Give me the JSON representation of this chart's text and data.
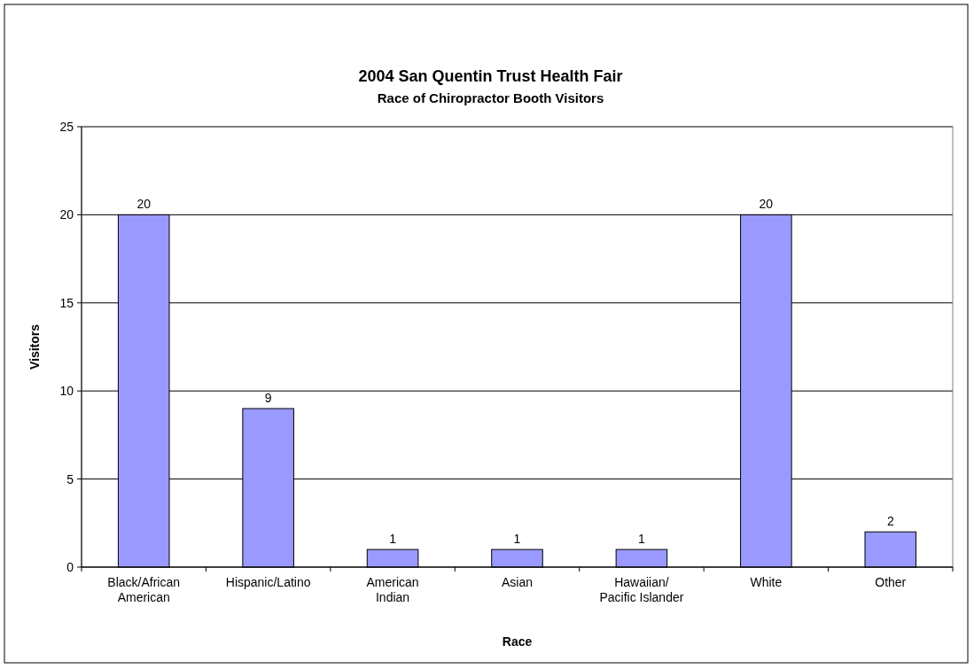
{
  "chart_data": {
    "type": "bar",
    "title": "2004 San Quentin Trust Health Fair",
    "subtitle": "Race of Chiropractor Booth Visitors",
    "xlabel": "Race",
    "ylabel": "Visitors",
    "categories": [
      "Black/African\nAmerican",
      "Hispanic/Latino",
      "American\nIndian",
      "Asian",
      "Hawaiian/\nPacific Islander",
      "White",
      "Other"
    ],
    "values": [
      20,
      9,
      1,
      1,
      1,
      20,
      2
    ],
    "color": "#9999ff",
    "ylim": [
      0,
      25
    ],
    "yticks": [
      0,
      5,
      10,
      15,
      20,
      25
    ],
    "grid": "y",
    "data_labels": true
  }
}
